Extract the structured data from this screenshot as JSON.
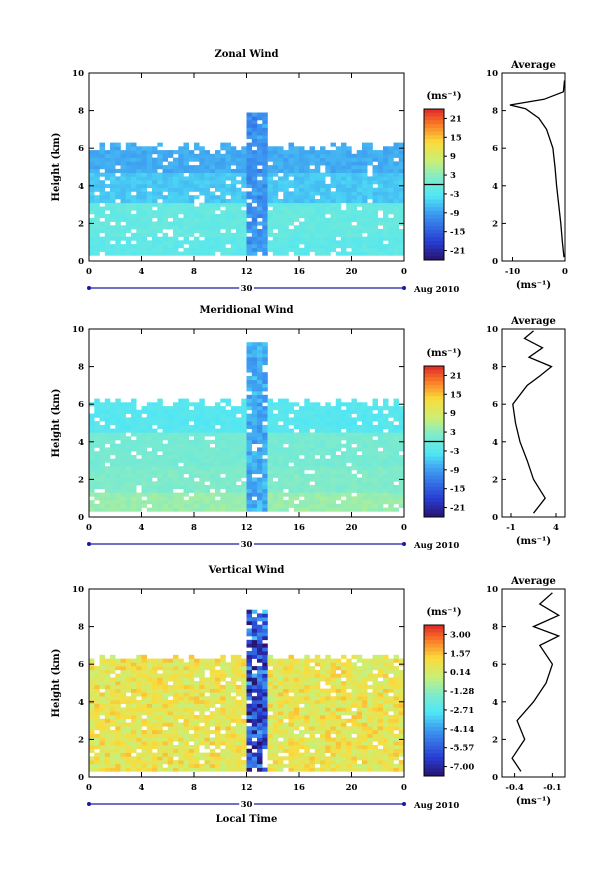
{
  "chart_data": [
    {
      "type": "heatmap",
      "title": "Zonal Wind",
      "ylabel": "Height (km)",
      "xlabel": "",
      "xlim": [
        0,
        24
      ],
      "ylim": [
        0,
        10
      ],
      "xticks": [
        "0",
        "4",
        "8",
        "12",
        "16",
        "20",
        "0"
      ],
      "yticks": [
        "0",
        "2",
        "4",
        "6",
        "8",
        "10"
      ],
      "date_label": "30",
      "date_suffix": "Aug 2010",
      "colorbar": {
        "unit": "(ms⁻¹)",
        "ticks": [
          "21",
          "15",
          "9",
          "3",
          "-3",
          "-9",
          "-15",
          "-21"
        ],
        "range": [
          -24,
          24
        ],
        "contour_at": 0
      },
      "field": {
        "value": -4,
        "bands": [
          [
            0.3,
            1.2,
            -2
          ],
          [
            1.2,
            3.0,
            -1
          ],
          [
            3.0,
            4.6,
            -6
          ],
          [
            4.6,
            6.2,
            -8
          ]
        ],
        "top": 6.2,
        "burst_top": 7.8,
        "burst_value": -10
      },
      "average_profile": {
        "title": "Average",
        "xlabel": "(ms⁻¹)",
        "xticks": [
          "-10",
          "0"
        ],
        "xlim": [
          -12,
          0
        ],
        "yticks": [
          "0",
          "2",
          "4",
          "6",
          "8",
          "10"
        ],
        "points": [
          [
            -0.2,
            0.2
          ],
          [
            -0.5,
            1.0
          ],
          [
            -0.8,
            2.0
          ],
          [
            -1.2,
            3.0
          ],
          [
            -1.6,
            4.0
          ],
          [
            -1.9,
            5.0
          ],
          [
            -2.3,
            6.0
          ],
          [
            -3.5,
            7.0
          ],
          [
            -5.0,
            7.6
          ],
          [
            -7.5,
            8.1
          ],
          [
            -10.5,
            8.3
          ],
          [
            -4.0,
            8.6
          ],
          [
            -0.3,
            9.0
          ],
          [
            -0.1,
            9.6
          ]
        ]
      }
    },
    {
      "type": "heatmap",
      "title": "Meridional Wind",
      "ylabel": "Height (km)",
      "xlabel": "",
      "xlim": [
        0,
        24
      ],
      "ylim": [
        0,
        10
      ],
      "xticks": [
        "0",
        "4",
        "8",
        "12",
        "16",
        "20",
        "0"
      ],
      "yticks": [
        "0",
        "2",
        "4",
        "6",
        "8",
        "10"
      ],
      "date_label": "30",
      "date_suffix": "Aug 2010",
      "colorbar": {
        "unit": "(ms⁻¹)",
        "ticks": [
          "21",
          "15",
          "9",
          "3",
          "-3",
          "-9",
          "-15",
          "-21"
        ],
        "range": [
          -24,
          24
        ],
        "contour_at": 0
      },
      "field": {
        "value": 0,
        "bands": [
          [
            0.3,
            1.2,
            4
          ],
          [
            1.2,
            2.6,
            2
          ],
          [
            2.6,
            4.4,
            1
          ],
          [
            4.4,
            6.2,
            -3
          ]
        ],
        "top": 6.2,
        "burst_top": 9.2,
        "burst_value": -8
      },
      "average_profile": {
        "title": "Average",
        "xlabel": "(ms⁻¹)",
        "xticks": [
          "-1",
          "4"
        ],
        "xlim": [
          -2,
          5
        ],
        "yticks": [
          "0",
          "2",
          "4",
          "6",
          "8",
          "10"
        ],
        "points": [
          [
            1.5,
            0.2
          ],
          [
            2.8,
            1.0
          ],
          [
            1.5,
            2.0
          ],
          [
            0.8,
            3.0
          ],
          [
            0.0,
            4.0
          ],
          [
            -0.5,
            5.0
          ],
          [
            -0.8,
            6.0
          ],
          [
            0.8,
            7.0
          ],
          [
            2.2,
            7.5
          ],
          [
            3.5,
            8.0
          ],
          [
            1.0,
            8.5
          ],
          [
            2.5,
            9.0
          ],
          [
            0.5,
            9.5
          ],
          [
            1.5,
            9.9
          ]
        ]
      }
    },
    {
      "type": "heatmap",
      "title": "Vertical Wind",
      "ylabel": "Height (km)",
      "xlabel": "Local Time",
      "xlim": [
        0,
        24
      ],
      "ylim": [
        0,
        10
      ],
      "xticks": [
        "0",
        "4",
        "8",
        "12",
        "16",
        "20",
        "0"
      ],
      "yticks": [
        "0",
        "2",
        "4",
        "6",
        "8",
        "10"
      ],
      "date_label": "30",
      "date_suffix": "Aug 2010",
      "colorbar": {
        "unit": "(ms⁻¹)",
        "ticks": [
          "3.00",
          "1.57",
          "0.14",
          "-1.28",
          "-2.71",
          "-4.14",
          "-5.57",
          "-7.00"
        ],
        "range": [
          -7.7,
          3.7
        ],
        "contour_at": null
      },
      "field": {
        "value": 0.6,
        "bands": [
          [
            0.3,
            6.5,
            0.6
          ]
        ],
        "top": 6.5,
        "burst_top": 8.8,
        "burst_value": -6
      },
      "average_profile": {
        "title": "Average",
        "xlabel": "(ms⁻¹)",
        "xticks": [
          "-0.4",
          "-0.1"
        ],
        "xlim": [
          -0.5,
          0.0
        ],
        "yticks": [
          "0",
          "2",
          "4",
          "6",
          "8",
          "10"
        ],
        "points": [
          [
            -0.35,
            0.3
          ],
          [
            -0.42,
            1.0
          ],
          [
            -0.32,
            2.0
          ],
          [
            -0.38,
            3.0
          ],
          [
            -0.25,
            4.0
          ],
          [
            -0.15,
            5.0
          ],
          [
            -0.1,
            6.0
          ],
          [
            -0.2,
            7.0
          ],
          [
            -0.05,
            7.5
          ],
          [
            -0.25,
            8.0
          ],
          [
            -0.05,
            8.6
          ],
          [
            -0.2,
            9.2
          ],
          [
            -0.1,
            9.8
          ]
        ]
      }
    }
  ]
}
